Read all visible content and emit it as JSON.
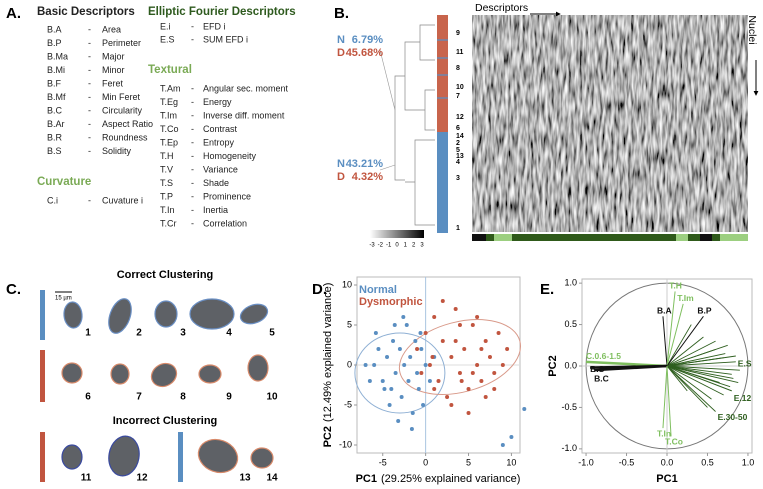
{
  "panel_a": {
    "label": "A.",
    "separator": "-",
    "groups": [
      {
        "title": "Basic Descriptors",
        "items": [
          [
            "B.A",
            "Area"
          ],
          [
            "B.P",
            "Perimeter"
          ],
          [
            "B.Ma",
            "Major"
          ],
          [
            "B.Mi",
            "Minor"
          ],
          [
            "B.F",
            "Feret"
          ],
          [
            "B.Mf",
            "Min Feret"
          ],
          [
            "B.C",
            "Circularity"
          ],
          [
            "B.Ar",
            "Aspect Ratio"
          ],
          [
            "B.R",
            "Roundness"
          ],
          [
            "B.S",
            "Solidity"
          ]
        ]
      },
      {
        "title": "Curvature",
        "items": [
          [
            "C.i",
            "Cuvature i"
          ]
        ]
      },
      {
        "title": "Elliptic Fourier Descriptors",
        "items": [
          [
            "E.i",
            "EFD i"
          ],
          [
            "E.S",
            "SUM EFD i"
          ]
        ]
      },
      {
        "title": "Textural",
        "items": [
          [
            "T.Am",
            "Angular sec. moment"
          ],
          [
            "T.Eg",
            "Energy"
          ],
          [
            "T.Im",
            "Inverse diff. moment"
          ],
          [
            "T.Co",
            "Contrast"
          ],
          [
            "T.Ep",
            "Entropy"
          ],
          [
            "T.H",
            "Homogeneity"
          ],
          [
            "T.V",
            "Variance"
          ],
          [
            "T.S",
            "Shade"
          ],
          [
            "T.P",
            "Prominence"
          ],
          [
            "T.In",
            "Inertia"
          ],
          [
            "T.Cr",
            "Correlation"
          ]
        ]
      }
    ]
  },
  "panel_b": {
    "label": "B.",
    "columns_label": "Descriptors",
    "rows_label": "Nuclei",
    "top_cluster": [
      {
        "group": "N",
        "share": "6.79%"
      },
      {
        "group": "D",
        "share": "45.68%"
      }
    ],
    "bottom_cluster": [
      {
        "group": "N",
        "share": "43.21%"
      },
      {
        "group": "D",
        "share": "4.32%"
      }
    ],
    "cluster_ids": [
      "9",
      "11",
      "8",
      "10",
      "7",
      "12",
      "6",
      "14",
      "2",
      "5",
      "13",
      "4",
      "3",
      "1"
    ],
    "colorbar_ticks": [
      -3,
      -2,
      -1,
      0,
      1,
      2,
      3
    ]
  },
  "panel_c": {
    "label": "C.",
    "scale": "15 µm",
    "correct_title": "Correct Clustering",
    "incorrect_title": "Incorrect Clustering",
    "nuclei": [
      "1",
      "2",
      "3",
      "4",
      "5",
      "6",
      "7",
      "8",
      "9",
      "10",
      "11",
      "12",
      "13",
      "14"
    ]
  },
  "chart_data": [
    {
      "type": "scatter",
      "panel_label": "D.",
      "x_label": "PC1",
      "x_label_note": "(29.25% explained variance)",
      "y_label": "PC2",
      "y_label_note": "(12.49% explained variance)",
      "xlim": [
        -8,
        11
      ],
      "ylim": [
        -11,
        11
      ],
      "xticks": [
        -5,
        0,
        5,
        10
      ],
      "yticks": [
        -10,
        -5,
        0,
        5,
        10
      ],
      "series": [
        {
          "name": "Normal",
          "color": "#5a8ec1",
          "x": [
            -6,
            -5.5,
            -5,
            -4.5,
            -4,
            -3.8,
            -3.5,
            -3,
            -2.8,
            -2.5,
            -2.2,
            -2,
            -1.8,
            -1.5,
            -1.2,
            -1,
            -0.8,
            -0.5,
            -0.3,
            0,
            0.5,
            1,
            -6.5,
            -7,
            -5.8,
            -4.2,
            -3.2,
            -2.6,
            -1.6,
            -0.6,
            -4.8,
            -3.6,
            10,
            9,
            11.5
          ],
          "values": [
            0,
            2,
            -2,
            1,
            -3,
            3,
            -1,
            2,
            -4,
            0,
            5,
            -2,
            1,
            -6,
            3,
            -1,
            -3,
            2,
            -5,
            0,
            -2,
            1,
            -2,
            0,
            4,
            -5,
            -7,
            6,
            -8,
            4,
            -3,
            5,
            -9,
            -10,
            -5.5
          ]
        },
        {
          "name": "Dysmorphic",
          "color": "#c1553f",
          "x": [
            -1,
            -0.5,
            0,
            0.5,
            1,
            1.5,
            2,
            2.5,
            3,
            3.5,
            4,
            4.5,
            5,
            5.5,
            6,
            6.5,
            7,
            7.5,
            8,
            8.5,
            9,
            2,
            3,
            4,
            5,
            6,
            7,
            1,
            3.5,
            5.5,
            6.5,
            8,
            0.8,
            4.2,
            9.5
          ],
          "values": [
            2,
            -1,
            4,
            0,
            6,
            -2,
            3,
            -4,
            1,
            7,
            -1,
            2,
            -3,
            5,
            0,
            -2,
            3,
            1,
            -1,
            4,
            0,
            8,
            -5,
            5,
            -6,
            6,
            -4,
            -3,
            3,
            -1,
            2,
            -3,
            1,
            -2,
            2
          ]
        }
      ]
    },
    {
      "type": "biplot",
      "panel_label": "E.",
      "x_label": "PC1",
      "y_label": "PC2",
      "xlim": [
        -1.05,
        1.05
      ],
      "ylim": [
        -1.05,
        1.05
      ],
      "xticks": [
        {
          "value": -1,
          "label": "-1.0"
        },
        {
          "value": -0.5,
          "label": "-0.5"
        },
        {
          "value": 0,
          "label": "0.0"
        },
        {
          "value": 0.5,
          "label": "0.5"
        },
        {
          "value": 1,
          "label": "1.0"
        }
      ],
      "yticks": [
        {
          "value": -1,
          "label": "-1.0"
        },
        {
          "value": -0.5,
          "label": "-0.5"
        },
        {
          "value": 0,
          "label": "0.0"
        },
        {
          "value": 0.5,
          "label": "0.5"
        },
        {
          "value": 1,
          "label": "1.0"
        }
      ],
      "series": [
        {
          "color": "#2f5f1f",
          "x": [
            0.6,
            0.7,
            0.75,
            0.8,
            0.85,
            0.9,
            0.65,
            0.7,
            0.78,
            0.82,
            0.55,
            0.6,
            0.72,
            0.88,
            0.5,
            0.45,
            0.3,
            0.25
          ],
          "values": [
            0.2,
            0.1,
            0.25,
            -0.1,
            0.05,
            -0.05,
            -0.2,
            -0.35,
            -0.25,
            -0.15,
            -0.4,
            0.3,
            0.15,
            -0.2,
            -0.5,
            0.35,
            0.5,
            -0.3
          ]
        }
      ],
      "labeled_vectors": [
        {
          "label": "B.A",
          "x": -0.05,
          "y": 0.6,
          "color": "#111111"
        },
        {
          "label": "T.H",
          "x": 0.1,
          "y": 0.9,
          "color": "#7fbf5f"
        },
        {
          "label": "T.Im",
          "x": 0.2,
          "y": 0.75,
          "color": "#7fbf5f"
        },
        {
          "label": "B.P",
          "x": 0.45,
          "y": 0.6,
          "color": "#111111"
        },
        {
          "label": "E.S",
          "x": 0.85,
          "y": 0.12,
          "color": "#2f5f1f"
        },
        {
          "label": "C.0.6-1.5",
          "x": -1.0,
          "y": 0.05,
          "color": "#7fbf5f"
        },
        {
          "label": "B.S",
          "x": -0.95,
          "y": -0.02,
          "color": "#111111"
        },
        {
          "label": "B.C",
          "x": -0.9,
          "y": -0.05,
          "color": "#111111"
        },
        {
          "label": "E.12",
          "x": 0.8,
          "y": -0.3,
          "color": "#2f5f1f"
        },
        {
          "label": "E.30-50",
          "x": 0.6,
          "y": -0.55,
          "color": "#2f5f1f"
        },
        {
          "label": "T.In",
          "x": -0.05,
          "y": -0.75,
          "color": "#7fbf5f"
        },
        {
          "label": "T.Co",
          "x": 0.05,
          "y": -0.85,
          "color": "#7fbf5f"
        }
      ]
    }
  ]
}
